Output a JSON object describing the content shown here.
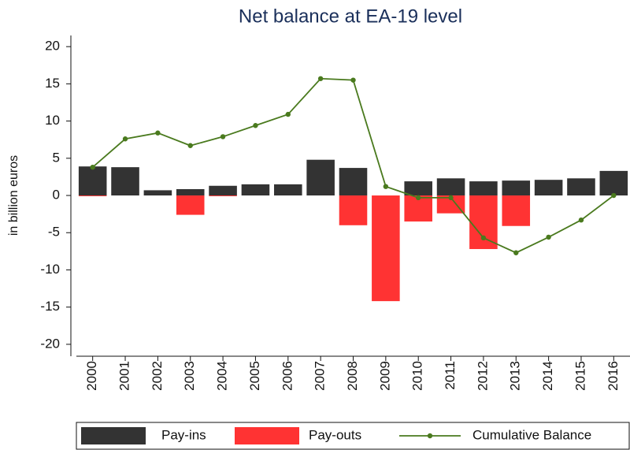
{
  "chart_data": {
    "type": "bar-line",
    "title": "Net balance at EA-19 level",
    "y_label": "in billion euros",
    "categories": [
      "2000",
      "2001",
      "2002",
      "2003",
      "2004",
      "2005",
      "2006",
      "2007",
      "2008",
      "2009",
      "2010",
      "2011",
      "2012",
      "2013",
      "2014",
      "2015",
      "2016"
    ],
    "series": [
      {
        "name": "Pay-ins",
        "type": "bar",
        "color": "#333333",
        "values": [
          3.9,
          3.8,
          0.7,
          0.85,
          1.3,
          1.5,
          1.5,
          4.8,
          3.7,
          0,
          1.9,
          2.3,
          1.9,
          2.0,
          2.1,
          2.3,
          3.3
        ]
      },
      {
        "name": "Pay-outs",
        "type": "bar",
        "color": "#ff3333",
        "values": [
          -0.1,
          0,
          0,
          -2.6,
          -0.1,
          0,
          0,
          0,
          -4.0,
          -14.2,
          -3.5,
          -2.4,
          -7.2,
          -4.1,
          0,
          0,
          0
        ]
      },
      {
        "name": "Cumulative Balance",
        "type": "line",
        "color": "#4a7a1e",
        "values": [
          3.8,
          7.6,
          8.4,
          6.7,
          7.9,
          9.4,
          10.9,
          15.7,
          15.5,
          1.2,
          -0.3,
          -0.3,
          -5.7,
          -7.7,
          -5.6,
          -3.3,
          0
        ]
      }
    ],
    "ylim": [
      -21.6,
      21.5
    ],
    "yticks": [
      -20,
      -15,
      -10,
      -5,
      0,
      5,
      10,
      15,
      20
    ]
  }
}
